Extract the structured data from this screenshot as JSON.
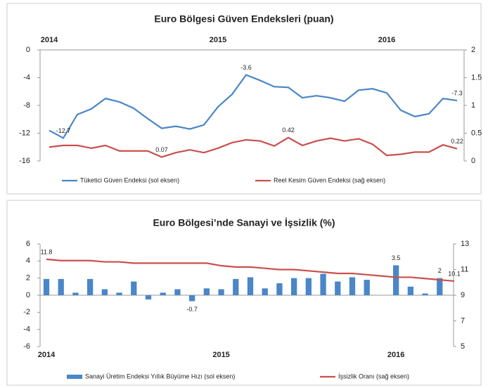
{
  "chart_data": [
    {
      "type": "line",
      "title": "Euro Bölgesi Güven Endeksleri (puan)",
      "categories": [
        "2014",
        null,
        null,
        null,
        null,
        null,
        null,
        null,
        null,
        null,
        null,
        null,
        "2015",
        null,
        null,
        null,
        null,
        null,
        null,
        null,
        null,
        null,
        null,
        null,
        "2016",
        null,
        null,
        null,
        null,
        null
      ],
      "series": [
        {
          "name": "Tüketici Güven Endeksi (sol eksen)",
          "color": "#4a86c8",
          "values": [
            -11.6,
            -12.7,
            -9.3,
            -8.5,
            -7.0,
            -7.5,
            -8.4,
            -9.9,
            -11.3,
            -11.0,
            -11.4,
            -10.8,
            -8.2,
            -6.4,
            -3.6,
            -4.4,
            -5.3,
            -5.4,
            -6.9,
            -6.6,
            -6.9,
            -7.4,
            -5.8,
            -5.6,
            -6.2,
            -8.7,
            -9.6,
            -9.2,
            -7.0,
            -7.3
          ],
          "value_labels": [
            null,
            "-12.7",
            null,
            null,
            null,
            null,
            null,
            null,
            null,
            null,
            null,
            null,
            null,
            null,
            "-3.6",
            null,
            null,
            null,
            null,
            null,
            null,
            null,
            null,
            null,
            null,
            null,
            null,
            null,
            null,
            "-7.3"
          ]
        },
        {
          "name": "Reel Kesim Güven Endeksi (sağ eksen)",
          "color": "#c9504d",
          "axis": "y2",
          "values": [
            0.25,
            0.28,
            0.28,
            0.23,
            0.28,
            0.18,
            0.18,
            0.18,
            0.07,
            0.15,
            0.2,
            0.15,
            0.23,
            0.33,
            0.38,
            0.36,
            0.27,
            0.42,
            0.28,
            0.36,
            0.41,
            0.36,
            0.4,
            0.3,
            0.1,
            0.12,
            0.16,
            0.16,
            0.29,
            0.22
          ],
          "value_labels": [
            null,
            null,
            null,
            null,
            null,
            null,
            null,
            null,
            "0.07",
            null,
            null,
            null,
            null,
            null,
            null,
            null,
            null,
            "0.42",
            null,
            null,
            null,
            null,
            null,
            null,
            null,
            null,
            null,
            null,
            null,
            "0.22"
          ]
        }
      ],
      "ylim": [
        -16,
        0
      ],
      "yticks": [
        0,
        -4,
        -8,
        -12,
        -16
      ],
      "y2lim": [
        0,
        2
      ],
      "y2ticks": [
        2,
        1.5,
        1,
        0.5,
        0
      ]
    },
    {
      "type": "combo",
      "title": "Euro Bölgesi’nde Sanayi ve İşsizlik (%)",
      "categories": [
        "2014",
        null,
        null,
        null,
        null,
        null,
        null,
        null,
        null,
        null,
        null,
        null,
        "2015",
        null,
        null,
        null,
        null,
        null,
        null,
        null,
        null,
        null,
        null,
        null,
        "2016",
        null,
        null,
        null,
        null
      ],
      "series": [
        {
          "name": "Sanayi Üretim Endeksi Yıllık Büyüme Hızı (sol eksen)",
          "color": "#4a86c8",
          "mark": "bar",
          "values": [
            1.9,
            1.9,
            0.3,
            1.9,
            0.7,
            0.3,
            1.6,
            -0.5,
            0.3,
            0.7,
            -0.7,
            0.8,
            0.7,
            1.9,
            2.1,
            0.8,
            1.4,
            2.0,
            2.0,
            2.5,
            1.6,
            2.1,
            1.8,
            0,
            3.5,
            1.0,
            0.2,
            2,
            null
          ],
          "value_labels": [
            null,
            null,
            null,
            null,
            null,
            null,
            null,
            null,
            null,
            null,
            "-0.7",
            null,
            null,
            null,
            null,
            null,
            null,
            null,
            null,
            null,
            null,
            null,
            null,
            null,
            "3.5",
            null,
            null,
            "2",
            null
          ]
        },
        {
          "name": "İşsizlik Oranı (sağ eksen)",
          "color": "#c9504d",
          "mark": "line",
          "axis": "y2",
          "values": [
            11.8,
            11.7,
            11.7,
            11.7,
            11.6,
            11.6,
            11.5,
            11.5,
            11.5,
            11.5,
            11.5,
            11.5,
            11.3,
            11.2,
            11.2,
            11.1,
            11.0,
            11.0,
            10.9,
            10.8,
            10.7,
            10.7,
            10.6,
            10.5,
            10.4,
            10.4,
            10.3,
            10.2,
            10.1
          ],
          "value_labels": [
            "11.8",
            null,
            null,
            null,
            null,
            null,
            null,
            null,
            null,
            null,
            null,
            null,
            null,
            null,
            null,
            null,
            null,
            null,
            null,
            null,
            null,
            null,
            null,
            null,
            null,
            null,
            null,
            null,
            "10.1"
          ]
        }
      ],
      "ylim": [
        -6,
        6
      ],
      "yticks": [
        6,
        4,
        2,
        0,
        -2,
        -4,
        -6
      ],
      "y2lim": [
        5,
        13
      ],
      "y2ticks": [
        13,
        11,
        9,
        7,
        5
      ]
    }
  ]
}
